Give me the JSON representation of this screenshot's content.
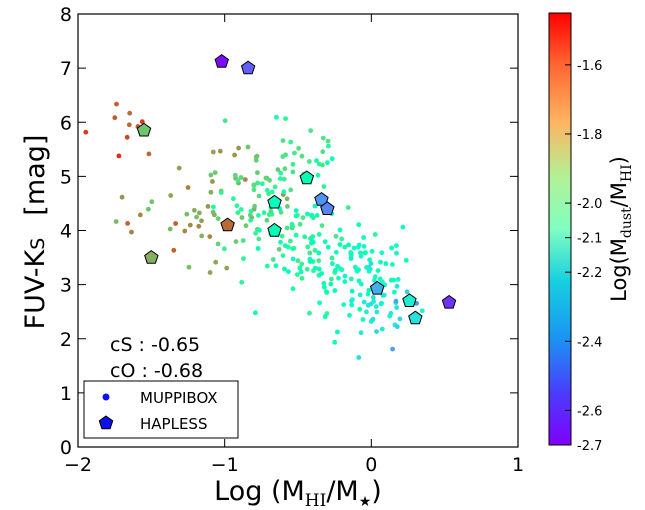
{
  "chart_data": {
    "type": "scatter",
    "xlabel": "Log (M",
    "xlabel_sub": "HI",
    "xlabel_tail": "/M",
    "xlabel_star": "★",
    "xlabel_close": ")",
    "ylabel": "FUV-K",
    "ylabel_sub": "S",
    "ylabel_unit": "[mag]",
    "colorbar_label": "Log(M",
    "colorbar_sub1": "dust",
    "colorbar_mid": "/M",
    "colorbar_sub2": "HI",
    "colorbar_close": ")",
    "xlim": [
      -2,
      1
    ],
    "ylim": [
      0,
      8
    ],
    "xticks": [
      -2,
      -1,
      0,
      1
    ],
    "xtick_labels": [
      "−2",
      "−1",
      "0",
      "1"
    ],
    "yticks": [
      0,
      1,
      2,
      3,
      4,
      5,
      6,
      7,
      8
    ],
    "ytick_labels": [
      "0",
      "1",
      "2",
      "3",
      "4",
      "5",
      "6",
      "7",
      "8"
    ],
    "colorbar_range": [
      -2.7,
      -1.45
    ],
    "colorbar_ticks": [
      -1.6,
      -1.8,
      -2.0,
      -2.1,
      -2.2,
      -2.4,
      -2.6,
      -2.7
    ],
    "colorbar_tick_labels": [
      "-1.6",
      "-1.8",
      "-2.0",
      "-2.1",
      "-2.2",
      "-2.4",
      "-2.6",
      "-2.7"
    ],
    "colormap": "rainbow",
    "grid": false,
    "annotations": [
      "cS : -0.65",
      "cO : -0.68"
    ],
    "legend": {
      "position": "lower-left",
      "entries": [
        {
          "label": "MUPPIBOX",
          "marker": "circle",
          "color": "#1010ee"
        },
        {
          "label": "HAPLESS",
          "marker": "pentagon",
          "color": "#1010ee"
        }
      ]
    },
    "series": [
      {
        "name": "HAPLESS",
        "marker": "pentagon",
        "points": [
          {
            "x": -1.02,
            "y": 7.12,
            "c": -2.68
          },
          {
            "x": -0.84,
            "y": 7.0,
            "c": -2.55
          },
          {
            "x": -1.55,
            "y": 5.85,
            "c": -1.8
          },
          {
            "x": -1.5,
            "y": 3.5,
            "c": -1.75
          },
          {
            "x": -0.98,
            "y": 4.1,
            "c": -1.62
          },
          {
            "x": -0.44,
            "y": 4.97,
            "c": -2.08
          },
          {
            "x": -0.66,
            "y": 4.52,
            "c": -2.12
          },
          {
            "x": -0.66,
            "y": 4.0,
            "c": -2.1
          },
          {
            "x": -0.34,
            "y": 4.57,
            "c": -2.45
          },
          {
            "x": -0.3,
            "y": 4.4,
            "c": -2.48
          },
          {
            "x": 0.04,
            "y": 2.93,
            "c": -2.4
          },
          {
            "x": 0.26,
            "y": 2.7,
            "c": -2.22
          },
          {
            "x": 0.3,
            "y": 2.38,
            "c": -2.27
          },
          {
            "x": 0.53,
            "y": 2.67,
            "c": -2.62
          }
        ]
      }
    ],
    "muppibox_regions": [
      {
        "cx": -1.7,
        "cy": 6.0,
        "sx": 0.12,
        "sy": 0.35,
        "n": 10,
        "cmin": -1.5,
        "cmax": -1.65
      },
      {
        "cx": -1.45,
        "cy": 4.3,
        "sx": 0.18,
        "sy": 0.55,
        "n": 14,
        "cmin": -1.6,
        "cmax": -1.8
      },
      {
        "cx": -1.05,
        "cy": 4.55,
        "sx": 0.18,
        "sy": 0.55,
        "n": 40,
        "cmin": -1.65,
        "cmax": -1.85
      },
      {
        "cx": -0.72,
        "cy": 4.5,
        "sx": 0.18,
        "sy": 0.6,
        "n": 60,
        "cmin": -1.8,
        "cmax": -2.0
      },
      {
        "cx": -0.45,
        "cy": 3.8,
        "sx": 0.18,
        "sy": 0.55,
        "n": 80,
        "cmin": -1.9,
        "cmax": -2.1
      },
      {
        "cx": -0.18,
        "cy": 3.25,
        "sx": 0.18,
        "sy": 0.5,
        "n": 70,
        "cmin": -2.05,
        "cmax": -2.2
      },
      {
        "cx": 0.02,
        "cy": 2.65,
        "sx": 0.1,
        "sy": 0.35,
        "n": 40,
        "cmin": -2.15,
        "cmax": -2.3
      },
      {
        "cx": 0.22,
        "cy": 2.4,
        "sx": 0.08,
        "sy": 0.4,
        "n": 8,
        "cmin": -2.3,
        "cmax": -2.45
      },
      {
        "cx": -0.55,
        "cy": 5.35,
        "sx": 0.22,
        "sy": 0.35,
        "n": 20,
        "cmin": -1.85,
        "cmax": -2.05
      }
    ]
  }
}
